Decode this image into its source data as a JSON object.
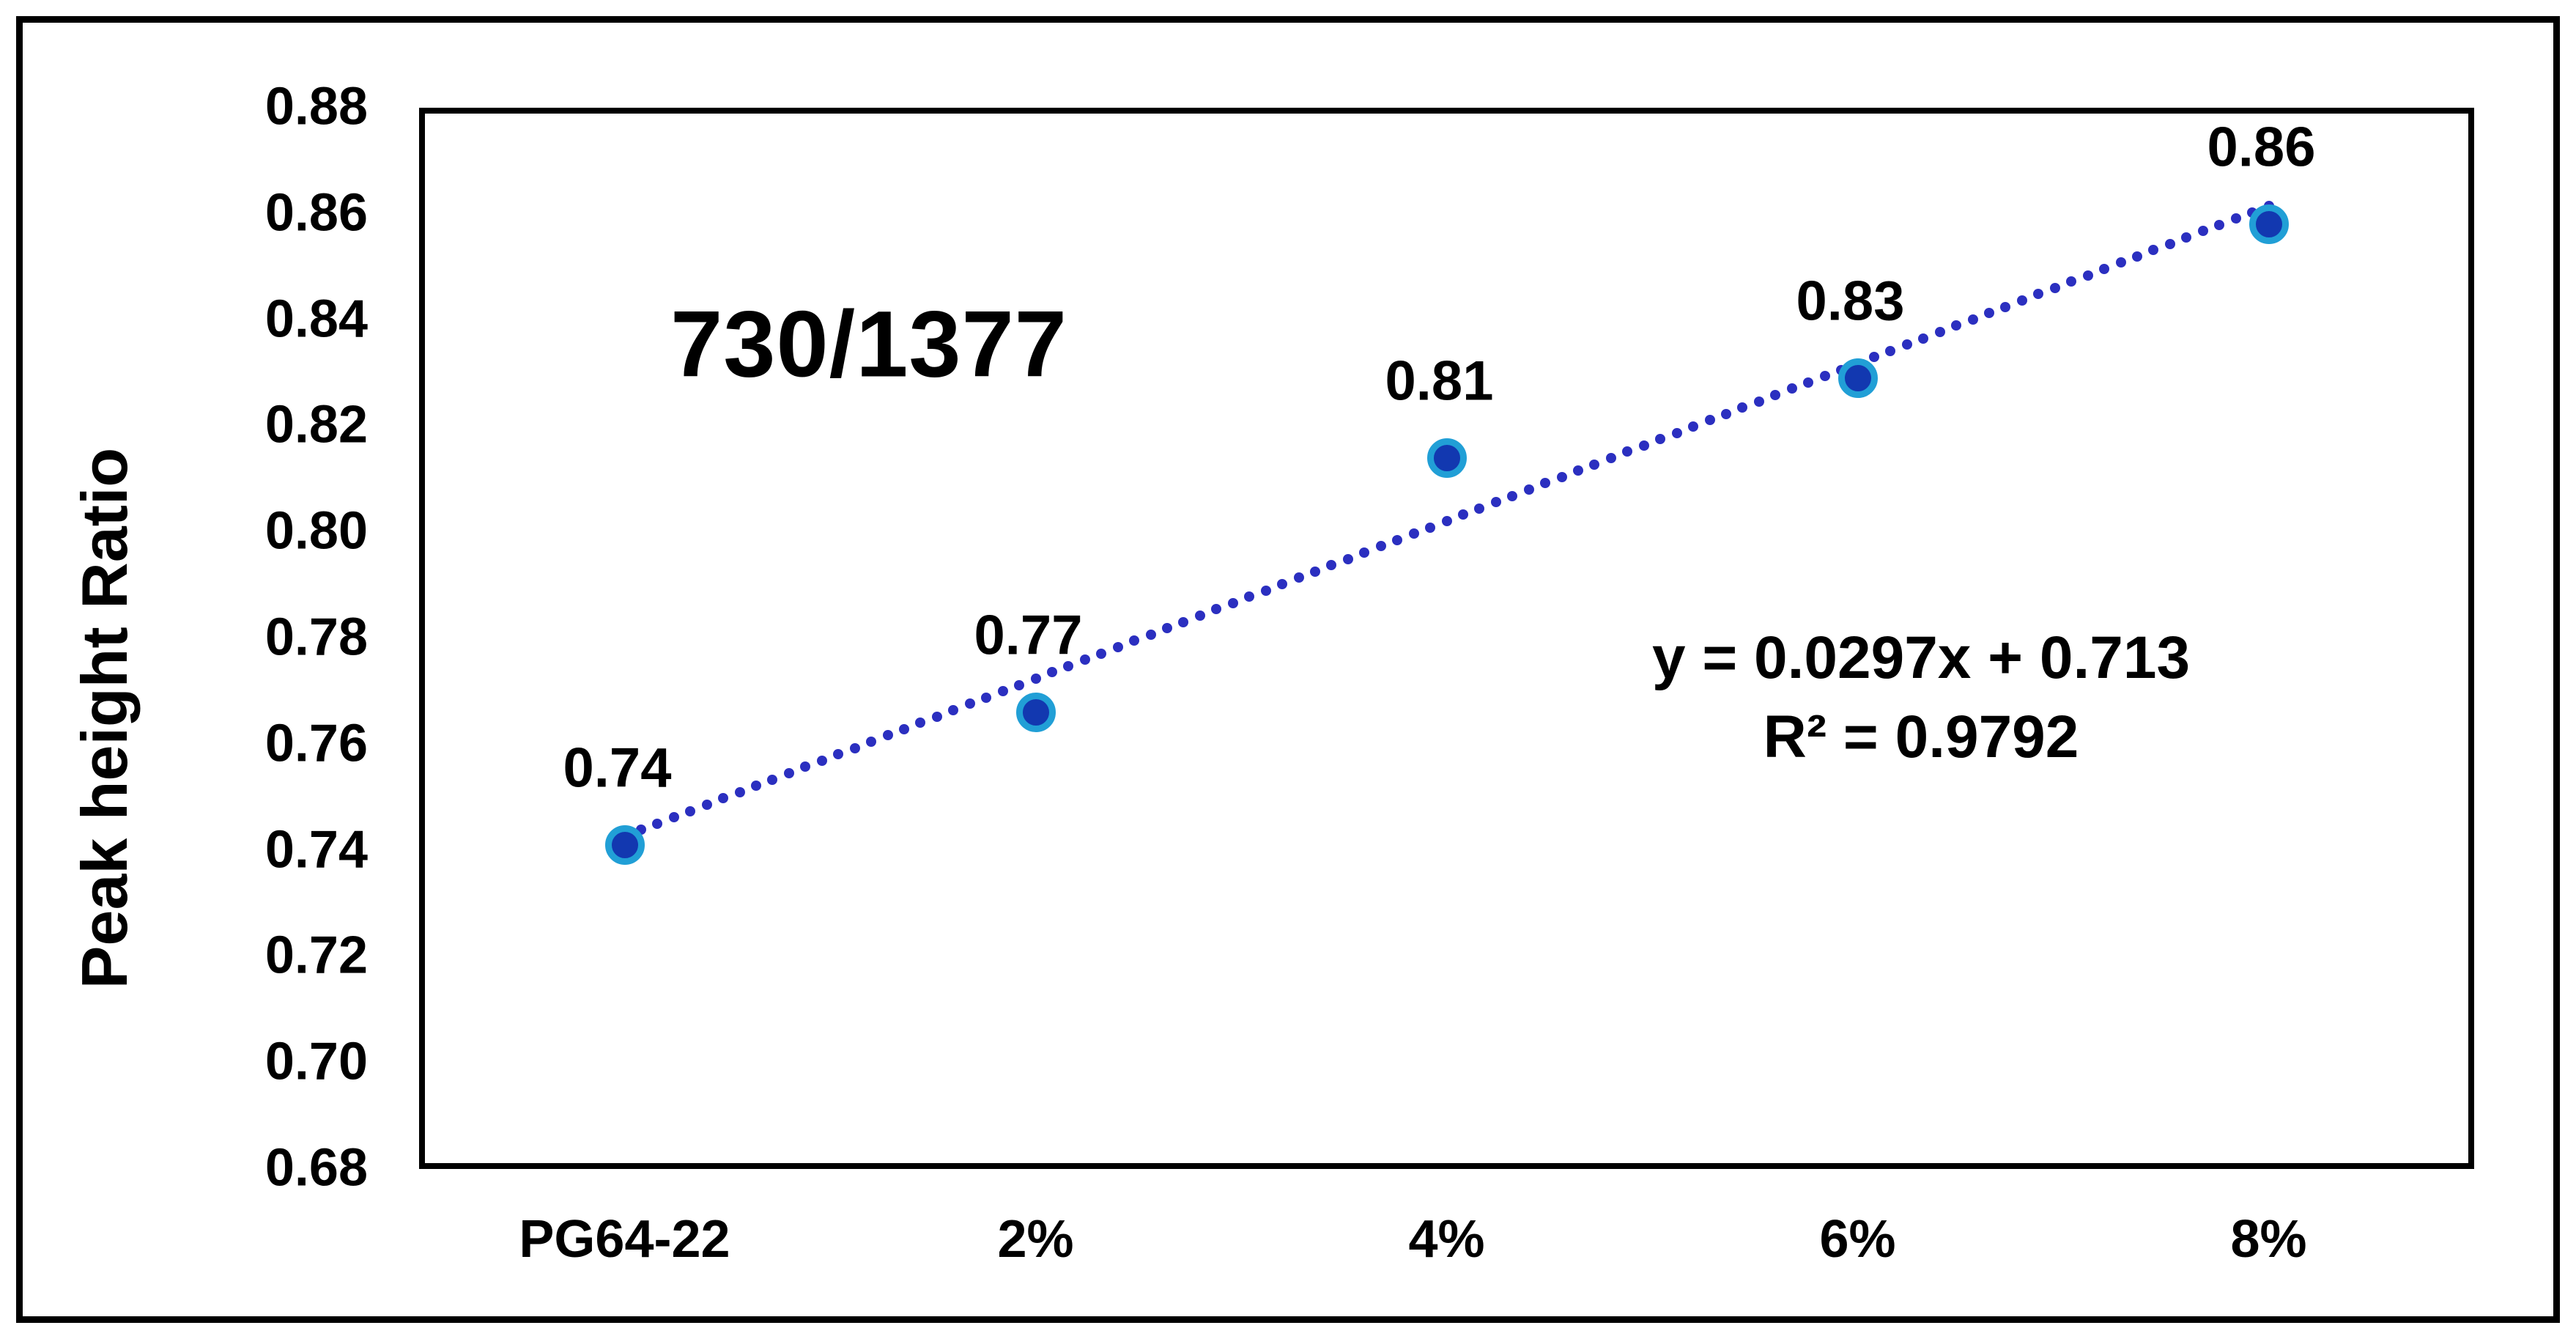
{
  "figure": {
    "background": "#ffffff",
    "border_color": "#000000"
  },
  "chart_data": {
    "type": "scatter",
    "title": "730/1377",
    "xlabel": "",
    "ylabel": "Peak height Ratio",
    "categories": [
      "PG64-22",
      "2%",
      "4%",
      "6%",
      "8%"
    ],
    "series": [
      {
        "name": "730/1377 peak height ratio",
        "values": [
          0.741,
          0.766,
          0.814,
          0.829,
          0.858
        ],
        "point_labels": [
          "0.74",
          "0.77",
          "0.81",
          "0.83",
          "0.86"
        ]
      }
    ],
    "trendline": {
      "equation_label": "y = 0.0297x + 0.713",
      "r2_label": "R² = 0.9792",
      "slope": 0.0297,
      "intercept": 0.713,
      "style": "dotted"
    },
    "y_axis": {
      "min": 0.68,
      "max": 0.88,
      "step": 0.02,
      "tick_labels": [
        "0.88",
        "0.86",
        "0.84",
        "0.82",
        "0.80",
        "0.78",
        "0.76",
        "0.74",
        "0.72",
        "0.70",
        "0.68"
      ]
    },
    "grid": false,
    "legend_position": "none",
    "colors": {
      "marker_fill": "#1238b0",
      "marker_ring": "#219fd6",
      "trendline_dot": "#2b2fc0",
      "text": "#000000",
      "axis_line": "#000000"
    }
  }
}
